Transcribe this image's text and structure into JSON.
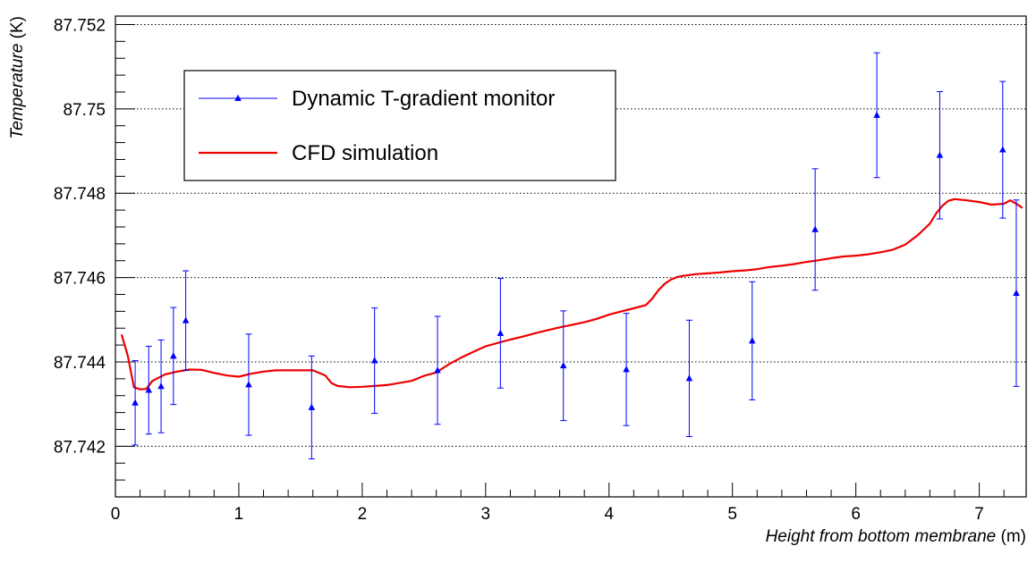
{
  "chart_data": {
    "type": "scatter",
    "title": "",
    "xlabel": {
      "italic": "Height from bottom membrane",
      "unit": " (m)"
    },
    "ylabel": {
      "italic": "Temperature",
      "unit": " (K)"
    },
    "xlim": [
      0,
      7.38
    ],
    "ylim": [
      87.7408,
      87.7522
    ],
    "x_ticks": [
      0,
      1,
      2,
      3,
      4,
      5,
      6,
      7
    ],
    "x_tick_labels": [
      "0",
      "1",
      "2",
      "3",
      "4",
      "5",
      "6",
      "7"
    ],
    "y_ticks": [
      87.742,
      87.744,
      87.746,
      87.748,
      87.75,
      87.752
    ],
    "y_tick_labels": [
      "87.742",
      "87.744",
      "87.746",
      "87.748",
      "87.75",
      "87.752"
    ],
    "grid": {
      "x": false,
      "y": true
    },
    "legend_position": "top-left",
    "colors": {
      "monitor": "#0000ff",
      "cfd": "#ee0000",
      "axis": "#000000",
      "grid": "#000000"
    },
    "series": [
      {
        "name": "Dynamic T-gradient monitor",
        "kind": "points-with-errorbars",
        "marker": "triangle",
        "x": [
          0.16,
          0.27,
          0.37,
          0.47,
          0.57,
          1.08,
          1.59,
          2.1,
          2.61,
          3.12,
          3.63,
          4.14,
          4.65,
          5.16,
          5.67,
          6.17,
          6.68,
          7.19,
          7.3
        ],
        "y": [
          87.74303,
          87.74333,
          87.74342,
          87.74414,
          87.74498,
          87.74346,
          87.74292,
          87.74403,
          87.7438,
          87.74468,
          87.74391,
          87.74382,
          87.74361,
          87.7445,
          87.74714,
          87.74985,
          87.7489,
          87.74903,
          87.74563
        ],
        "err": [
          0.001,
          0.00104,
          0.0011,
          0.00115,
          0.00118,
          0.0012,
          0.00122,
          0.00125,
          0.00128,
          0.0013,
          0.0013,
          0.00133,
          0.00138,
          0.0014,
          0.00144,
          0.00148,
          0.00151,
          0.00162,
          0.00221
        ]
      },
      {
        "name": "CFD simulation",
        "kind": "line",
        "x": [
          0.05,
          0.1,
          0.15,
          0.2,
          0.25,
          0.3,
          0.4,
          0.5,
          0.6,
          0.7,
          0.8,
          0.9,
          1.0,
          1.1,
          1.2,
          1.3,
          1.4,
          1.5,
          1.6,
          1.7,
          1.75,
          1.8,
          1.9,
          2.0,
          2.1,
          2.2,
          2.3,
          2.4,
          2.5,
          2.6,
          2.7,
          2.8,
          2.9,
          3.0,
          3.1,
          3.2,
          3.3,
          3.4,
          3.5,
          3.6,
          3.7,
          3.8,
          3.9,
          4.0,
          4.1,
          4.2,
          4.3,
          4.35,
          4.4,
          4.45,
          4.5,
          4.55,
          4.6,
          4.65,
          4.7,
          4.8,
          4.9,
          5.0,
          5.1,
          5.2,
          5.3,
          5.4,
          5.5,
          5.6,
          5.7,
          5.8,
          5.9,
          6.0,
          6.1,
          6.2,
          6.3,
          6.4,
          6.5,
          6.6,
          6.65,
          6.7,
          6.75,
          6.8,
          6.9,
          7.0,
          7.1,
          7.2,
          7.25,
          7.3,
          7.35
        ],
        "y": [
          87.74465,
          87.74415,
          87.7434,
          87.74335,
          87.74336,
          87.74355,
          87.7437,
          87.74377,
          87.74382,
          87.74381,
          87.74374,
          87.74368,
          87.74365,
          87.74372,
          87.74377,
          87.7438,
          87.7438,
          87.7438,
          87.7438,
          87.74368,
          87.7435,
          87.74343,
          87.7434,
          87.74341,
          87.74343,
          87.74345,
          87.7435,
          87.74355,
          87.74367,
          87.74375,
          87.74394,
          87.7441,
          87.74424,
          87.74437,
          87.74445,
          87.74453,
          87.7446,
          87.74468,
          87.74475,
          87.74482,
          87.74488,
          87.74494,
          87.74502,
          87.74512,
          87.7452,
          87.74527,
          87.74535,
          87.7455,
          87.7457,
          87.74585,
          87.74595,
          87.74601,
          87.74604,
          87.74606,
          87.74608,
          87.7461,
          87.74612,
          87.74615,
          87.74617,
          87.7462,
          87.74625,
          87.74628,
          87.74632,
          87.74637,
          87.74641,
          87.74646,
          87.7465,
          87.74652,
          87.74655,
          87.7466,
          87.74666,
          87.74678,
          87.747,
          87.74728,
          87.74752,
          87.7477,
          87.74782,
          87.74786,
          87.74783,
          87.74779,
          87.74773,
          87.74775,
          87.74783,
          87.74775,
          87.74765
        ]
      }
    ]
  }
}
